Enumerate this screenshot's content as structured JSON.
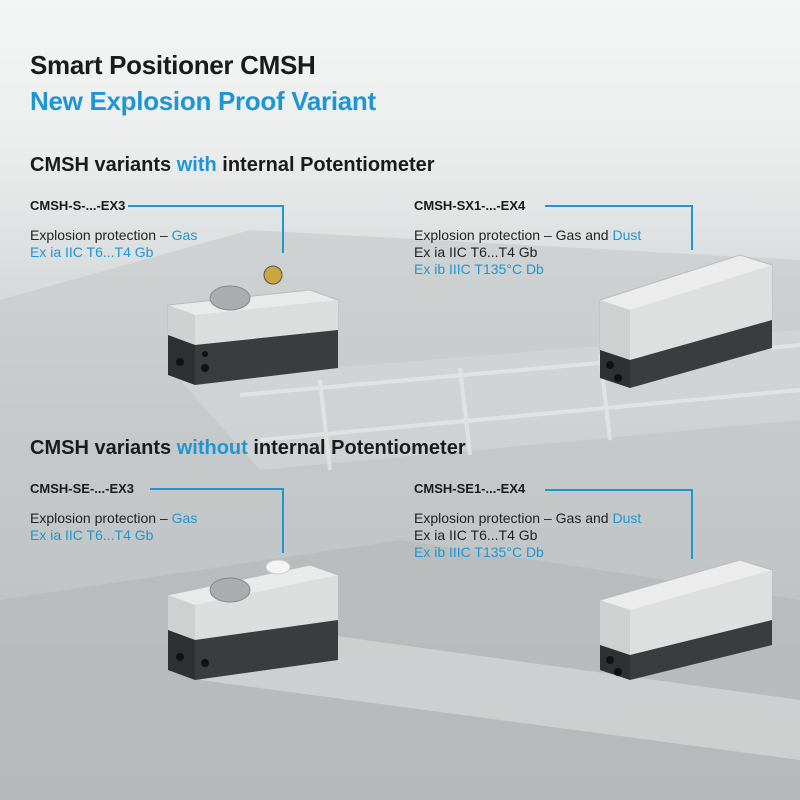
{
  "title": "Smart Positioner CMSH",
  "subtitle": "New Explosion Proof Variant",
  "sections": [
    {
      "heading_pre": "CMSH variants ",
      "heading_em": "with",
      "heading_post": " internal Potentiometer",
      "variants": [
        {
          "model": "CMSH-S-...-EX3",
          "protection_pre": "Explosion protection – ",
          "protection_em": "Gas",
          "lines": [],
          "blue_lines": [
            "Ex ia IIC T6...T4 Gb"
          ],
          "device": "positioner-with-display-and-indicator"
        },
        {
          "model": "CMSH-SX1-...-EX4",
          "protection_pre": "Explosion protection – Gas and ",
          "protection_em": "Dust",
          "lines": [
            "Ex ia IIC T6...T4 Gb"
          ],
          "blue_lines": [
            "Ex ib IIIC T135°C Db"
          ],
          "device": "positioner-plain-cover"
        }
      ]
    },
    {
      "heading_pre": "CMSH variants ",
      "heading_em": "without",
      "heading_post": " internal Potentiometer",
      "variants": [
        {
          "model": "CMSH-SE-...-EX3",
          "protection_pre": "Explosion protection – ",
          "protection_em": "Gas",
          "lines": [],
          "blue_lines": [
            "Ex ia IIC T6...T4 Gb"
          ],
          "device": "positioner-with-display"
        },
        {
          "model": "CMSH-SE1-...-EX4",
          "protection_pre": "Explosion protection – Gas and ",
          "protection_em": "Dust",
          "lines": [
            "Ex ia IIC T6...T4 Gb"
          ],
          "blue_lines": [
            "Ex ib IIIC T135°C Db"
          ],
          "device": "positioner-plain-cover"
        }
      ]
    }
  ],
  "colors": {
    "accent": "#1f96d3",
    "text": "#1b1b1b"
  }
}
